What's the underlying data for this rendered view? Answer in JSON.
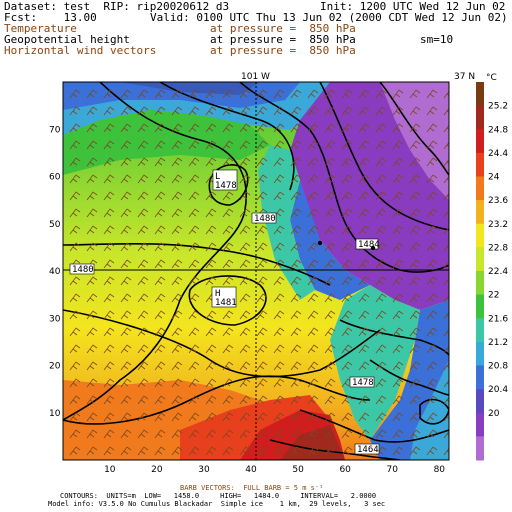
{
  "header": {
    "dataset": "Dataset: test  RIP: rip20020612 d3",
    "init": "Init: 1200 UTC Wed 12 Jun 02",
    "fcst": "Fcst:    13.00",
    "valid": "Valid: 0100 UTC Thu 13 Jun 02 (2000 CDT Wed 12 Jun 02)",
    "line3_left": "Temperature",
    "line3_right": "at pressure =  850 hPa",
    "line4_left": "Geopotential height",
    "line4_right": "at pressure =  850 hPa",
    "line4_extra": "sm=10",
    "line5_left": "Horizontal wind vectors",
    "line5_right": "at pressure =  850 hPa"
  },
  "map": {
    "top_label_lon": "101 W",
    "right_label_lat": "37 N",
    "x_ticks": [
      "10",
      "20",
      "30",
      "40",
      "50",
      "60",
      "70",
      "80"
    ],
    "y_ticks": [
      "10",
      "20",
      "30",
      "40",
      "50",
      "60",
      "70"
    ],
    "contour_labels": [
      {
        "text": "L\n1478"
      },
      {
        "text": "1480"
      },
      {
        "text": "1480"
      },
      {
        "text": "H\n1481"
      },
      {
        "text": "1484"
      },
      {
        "text": "1478"
      },
      {
        "text": "1464"
      }
    ]
  },
  "colorbar": {
    "unit": "°C",
    "labels": [
      "25.2",
      "24.8",
      "24.4",
      "24",
      "23.6",
      "23.2",
      "22.8",
      "22.4",
      "22",
      "21.6",
      "21.2",
      "20.8",
      "20.4",
      "20"
    ],
    "colors": [
      "#7a3b10",
      "#a0281c",
      "#d01e1e",
      "#e8401c",
      "#f07a1c",
      "#f2b21e",
      "#f3e51e",
      "#c8e62a",
      "#8ad630",
      "#3ec23c",
      "#3cc8a6",
      "#3aa8d8",
      "#3a70d8",
      "#5a4ac0",
      "#8a3cc0",
      "#b06cd0"
    ]
  },
  "footer": {
    "barb": "BARB VECTORS:  FULL BARB = 5 m s⁻¹",
    "contours": "CONTOURS:  UNITS=m  LOW=   1458.0     HIGH=   1484.0     INTERVAL=   2.0000",
    "model": "Model info: V3.5.0 No Cumulus Blackadar  Simple ice    1 km,  29 levels,   3 sec"
  }
}
